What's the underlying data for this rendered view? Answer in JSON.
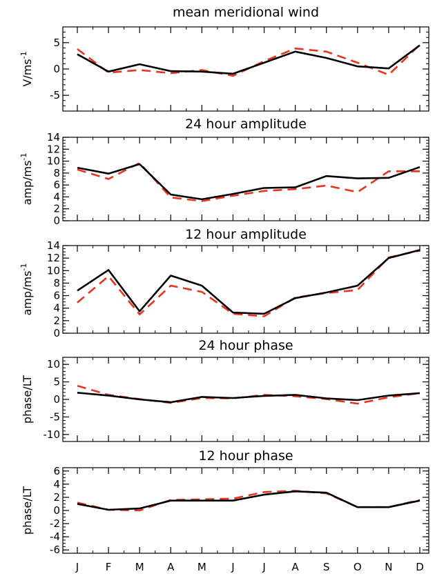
{
  "months": [
    "J",
    "F",
    "M",
    "A",
    "M",
    "J",
    "J",
    "A",
    "S",
    "O",
    "N",
    "D"
  ],
  "colors": {
    "series_a": "#000000",
    "series_b": "#e8341c"
  },
  "chart_data": [
    {
      "type": "line",
      "title": "mean meridional wind",
      "ylabel": {
        "base": "V/ms",
        "sup": "-1"
      },
      "ylim": [
        -8,
        8
      ],
      "yticks": [
        -5,
        0,
        5
      ],
      "series": [
        {
          "values": [
            2.8,
            -0.5,
            0.9,
            -0.4,
            -0.5,
            -0.9,
            1.2,
            3.3,
            2.1,
            0.5,
            0.1,
            4.5
          ]
        },
        {
          "values": [
            3.8,
            -0.7,
            -0.2,
            -0.8,
            -0.2,
            -1.3,
            1.5,
            3.9,
            3.3,
            1.2,
            -1.1,
            4.6
          ]
        }
      ]
    },
    {
      "type": "line",
      "title": "24 hour amplitude",
      "ylabel": {
        "base": "amp/ms",
        "sup": "-1"
      },
      "ylim": [
        0,
        14
      ],
      "yticks": [
        0,
        2,
        4,
        6,
        8,
        10,
        12,
        14
      ],
      "series": [
        {
          "values": [
            8.9,
            7.9,
            9.5,
            4.4,
            3.6,
            4.5,
            5.5,
            5.6,
            7.5,
            7.1,
            7.2,
            9.0
          ]
        },
        {
          "values": [
            8.6,
            7.0,
            9.7,
            3.9,
            3.3,
            4.2,
            5.0,
            5.3,
            5.9,
            4.8,
            8.3,
            8.3
          ]
        }
      ]
    },
    {
      "type": "line",
      "title": "12 hour amplitude",
      "ylabel": {
        "base": "amp/ms",
        "sup": "-1"
      },
      "ylim": [
        0,
        14
      ],
      "yticks": [
        0,
        2,
        4,
        6,
        8,
        10,
        12,
        14
      ],
      "series": [
        {
          "values": [
            6.8,
            10.1,
            3.5,
            9.2,
            7.6,
            3.3,
            3.1,
            5.6,
            6.5,
            7.6,
            12.0,
            13.3
          ]
        },
        {
          "values": [
            4.9,
            9.1,
            3.0,
            7.6,
            6.6,
            3.1,
            2.7,
            5.7,
            6.4,
            6.9,
            12.1,
            13.2
          ]
        }
      ]
    },
    {
      "type": "line",
      "title": "24 hour phase",
      "ylabel": {
        "base": "phase/LT",
        "sup": ""
      },
      "ylim": [
        -12,
        12
      ],
      "yticks": [
        -10,
        -5,
        0,
        5,
        10
      ],
      "series": [
        {
          "values": [
            1.9,
            1.1,
            0.0,
            -0.8,
            0.7,
            0.4,
            1.0,
            1.3,
            0.3,
            -0.2,
            1.1,
            1.8
          ]
        },
        {
          "values": [
            3.9,
            1.3,
            0.1,
            -1.0,
            0.4,
            0.3,
            1.3,
            0.9,
            0.1,
            -1.2,
            0.6,
            1.8
          ]
        }
      ]
    },
    {
      "type": "line",
      "title": "12 hour phase",
      "ylabel": {
        "base": "phase/LT",
        "sup": ""
      },
      "ylim": [
        -6.5,
        6.5
      ],
      "yticks": [
        -6,
        -4,
        -2,
        0,
        2,
        4,
        6
      ],
      "series": [
        {
          "values": [
            1.0,
            0.1,
            0.3,
            1.5,
            1.5,
            1.5,
            2.4,
            2.9,
            2.7,
            0.5,
            0.5,
            1.5
          ]
        },
        {
          "values": [
            1.2,
            0.1,
            0.0,
            1.6,
            1.7,
            1.8,
            2.8,
            3.0,
            2.6,
            0.5,
            0.5,
            1.6
          ]
        }
      ]
    }
  ]
}
